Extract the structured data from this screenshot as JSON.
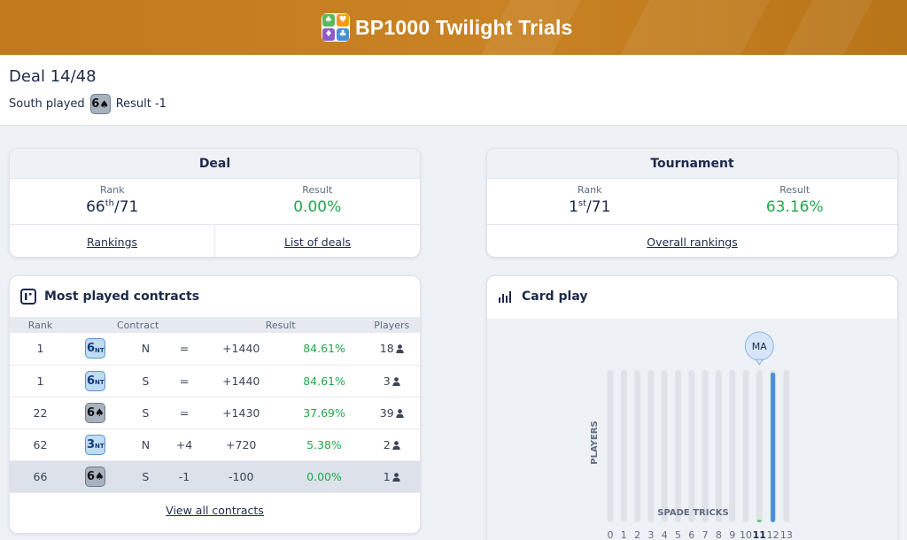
{
  "header": {
    "title": "BP1000 Twilight Trials",
    "logo_suits": [
      "♠",
      "♥",
      "♦",
      "♣"
    ]
  },
  "deal_bar": {
    "title": "Deal 14/48",
    "played_label": "South played",
    "contract_chip": {
      "level": "6",
      "suit": "♠"
    },
    "result_text": "Result -1"
  },
  "deal_card": {
    "title": "Deal",
    "rank_label": "Rank",
    "rank_value": "66",
    "rank_suffix": "th",
    "rank_total": "/71",
    "result_label": "Result",
    "result_value": "0.00%",
    "link_rankings": "Rankings",
    "link_deals": "List of deals"
  },
  "tournament_card": {
    "title": "Tournament",
    "rank_label": "Rank",
    "rank_value": "1",
    "rank_suffix": "st",
    "rank_total": "/71",
    "result_label": "Result",
    "result_value": "63.16%",
    "link_overall": "Overall rankings"
  },
  "contracts": {
    "title": "Most played contracts",
    "columns": {
      "rank": "Rank",
      "contract": "Contract",
      "result": "Result",
      "players": "Players"
    },
    "rows": [
      {
        "rank": "1",
        "level": "6",
        "strain": "NT",
        "declarer": "N",
        "tricks": "=",
        "score": "+1440",
        "pct": "84.61%",
        "players": "18",
        "mine": false
      },
      {
        "rank": "1",
        "level": "6",
        "strain": "NT",
        "declarer": "S",
        "tricks": "=",
        "score": "+1440",
        "pct": "84.61%",
        "players": "3",
        "mine": false
      },
      {
        "rank": "22",
        "level": "6",
        "strain": "♠",
        "declarer": "S",
        "tricks": "=",
        "score": "+1430",
        "pct": "37.69%",
        "players": "39",
        "mine": false
      },
      {
        "rank": "62",
        "level": "3",
        "strain": "NT",
        "declarer": "N",
        "tricks": "+4",
        "score": "+720",
        "pct": "5.38%",
        "players": "2",
        "mine": false
      },
      {
        "rank": "66",
        "level": "6",
        "strain": "♠",
        "declarer": "S",
        "tricks": "-1",
        "score": "-100",
        "pct": "0.00%",
        "players": "1",
        "mine": true
      }
    ],
    "view_all": "View all contracts"
  },
  "card_play": {
    "title": "Card play",
    "y_label": "PLAYERS",
    "x_label": "SPADE TRICKS",
    "marker": "MA",
    "marker_trick": 11
  },
  "chart_data": {
    "type": "bar",
    "title": "Card play",
    "xlabel": "SPADE TRICKS",
    "ylabel": "PLAYERS",
    "categories": [
      "0",
      "1",
      "2",
      "3",
      "4",
      "5",
      "6",
      "7",
      "8",
      "9",
      "10",
      "11",
      "12",
      "13"
    ],
    "values": [
      0,
      0,
      0,
      0,
      0,
      0,
      0,
      0,
      0,
      0,
      0,
      1,
      62,
      0
    ],
    "ylim": [
      0,
      63
    ],
    "highlight_category": "11",
    "marker_label": "MA"
  },
  "colors": {
    "header": "#c98324",
    "accent_green": "#1fa84b",
    "bar_fill": "#4a90d9",
    "bar_track": "#dfe3e9",
    "highlight_bar": "#5cc184"
  }
}
